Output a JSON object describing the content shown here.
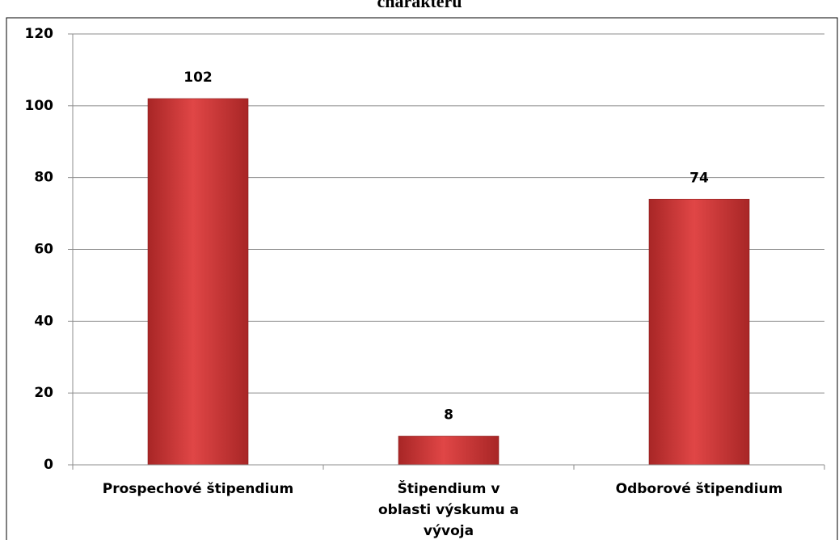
{
  "chart_data": {
    "type": "bar",
    "title": "charakteru",
    "categories": [
      "Prospechové štipendium",
      "Štipendium v oblasti výskumu a vývoja",
      "Odborové štipendium"
    ],
    "values": [
      102,
      8,
      74
    ],
    "color": "#d13b3b",
    "ylim": [
      0,
      120
    ],
    "yticks": [
      0,
      20,
      40,
      60,
      80,
      100,
      120
    ],
    "grid": true
  }
}
